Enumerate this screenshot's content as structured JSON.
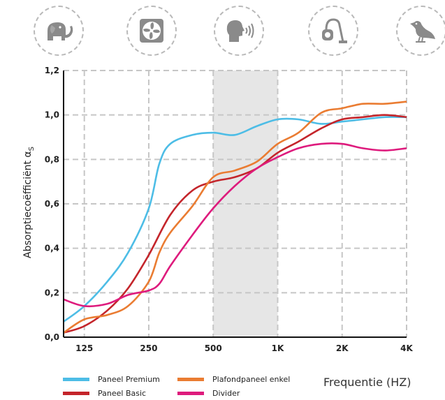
{
  "icons": [
    "elephant-icon",
    "fan-icon",
    "speaking-person-icon",
    "vacuum-cleaner-icon",
    "bird-icon"
  ],
  "chart_data": {
    "type": "line",
    "ylabel": "Absorptiecoëfficiënt α",
    "ylabel_subscript": "S",
    "xlabel": "Frequentie (HZ)",
    "x_scale": "log",
    "x_range": [
      100,
      4000
    ],
    "y_range": [
      0,
      1.2
    ],
    "x_ticks": [
      {
        "value": 125,
        "label": "125"
      },
      {
        "value": 250,
        "label": "250"
      },
      {
        "value": 500,
        "label": "500"
      },
      {
        "value": 1000,
        "label": "1K"
      },
      {
        "value": 2000,
        "label": "2K"
      },
      {
        "value": 4000,
        "label": "4K"
      }
    ],
    "y_ticks": [
      {
        "value": 0,
        "label": "0,0"
      },
      {
        "value": 0.2,
        "label": "0,2"
      },
      {
        "value": 0.4,
        "label": "0,4"
      },
      {
        "value": 0.6,
        "label": "0,6"
      },
      {
        "value": 0.8,
        "label": "0,8"
      },
      {
        "value": 1.0,
        "label": "1,0"
      },
      {
        "value": 1.2,
        "label": "1,2"
      }
    ],
    "shaded_band": [
      500,
      1000
    ],
    "grid": true,
    "legend_position": "bottom",
    "series": [
      {
        "name": "Paneel Premium",
        "color": "#4dbde6",
        "points": [
          [
            100,
            0.07
          ],
          [
            125,
            0.14
          ],
          [
            160,
            0.25
          ],
          [
            200,
            0.38
          ],
          [
            250,
            0.58
          ],
          [
            280,
            0.78
          ],
          [
            315,
            0.87
          ],
          [
            400,
            0.91
          ],
          [
            500,
            0.92
          ],
          [
            630,
            0.91
          ],
          [
            800,
            0.95
          ],
          [
            1000,
            0.98
          ],
          [
            1250,
            0.98
          ],
          [
            1600,
            0.96
          ],
          [
            2000,
            0.97
          ],
          [
            2500,
            0.98
          ],
          [
            3150,
            0.99
          ],
          [
            4000,
            0.99
          ]
        ]
      },
      {
        "name": "Paneel Basic",
        "color": "#c4252b",
        "points": [
          [
            100,
            0.02
          ],
          [
            125,
            0.05
          ],
          [
            160,
            0.12
          ],
          [
            200,
            0.22
          ],
          [
            250,
            0.37
          ],
          [
            315,
            0.55
          ],
          [
            400,
            0.66
          ],
          [
            500,
            0.7
          ],
          [
            630,
            0.72
          ],
          [
            800,
            0.76
          ],
          [
            1000,
            0.83
          ],
          [
            1250,
            0.88
          ],
          [
            1600,
            0.94
          ],
          [
            2000,
            0.98
          ],
          [
            2500,
            0.99
          ],
          [
            3150,
            1.0
          ],
          [
            4000,
            0.99
          ]
        ]
      },
      {
        "name": "Plafondpaneel enkel",
        "color": "#ea7c32",
        "points": [
          [
            100,
            0.02
          ],
          [
            125,
            0.08
          ],
          [
            160,
            0.1
          ],
          [
            200,
            0.14
          ],
          [
            250,
            0.25
          ],
          [
            280,
            0.38
          ],
          [
            315,
            0.47
          ],
          [
            400,
            0.59
          ],
          [
            500,
            0.72
          ],
          [
            630,
            0.75
          ],
          [
            800,
            0.79
          ],
          [
            1000,
            0.87
          ],
          [
            1250,
            0.92
          ],
          [
            1600,
            1.01
          ],
          [
            2000,
            1.03
          ],
          [
            2500,
            1.05
          ],
          [
            3150,
            1.05
          ],
          [
            4000,
            1.06
          ]
        ]
      },
      {
        "name": "Divider",
        "color": "#de1b7d",
        "points": [
          [
            100,
            0.17
          ],
          [
            125,
            0.14
          ],
          [
            160,
            0.15
          ],
          [
            200,
            0.19
          ],
          [
            250,
            0.21
          ],
          [
            280,
            0.24
          ],
          [
            315,
            0.32
          ],
          [
            400,
            0.46
          ],
          [
            500,
            0.58
          ],
          [
            630,
            0.68
          ],
          [
            800,
            0.76
          ],
          [
            1000,
            0.81
          ],
          [
            1250,
            0.85
          ],
          [
            1600,
            0.87
          ],
          [
            2000,
            0.87
          ],
          [
            2500,
            0.85
          ],
          [
            3150,
            0.84
          ],
          [
            4000,
            0.85
          ]
        ]
      }
    ]
  }
}
